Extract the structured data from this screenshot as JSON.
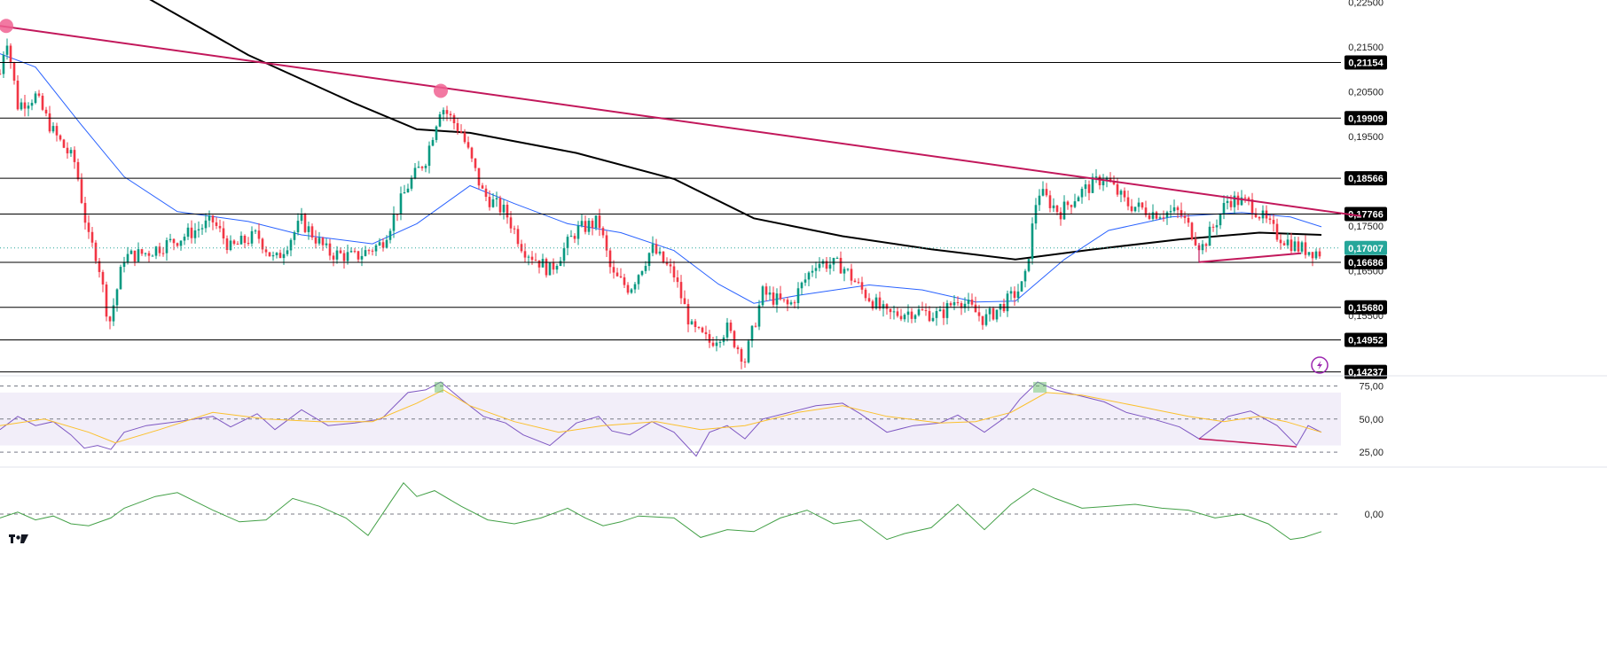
{
  "chart_data": [
    {
      "type": "candlestick",
      "panel": "price",
      "title": "",
      "y_axis": {
        "position": "right",
        "range": [
          0.1417,
          0.2255
        ],
        "tick_labels": [
          "0,22500",
          "0,21500",
          "0,20500",
          "0,19500",
          "0,17500",
          "0,16500",
          "0,15500"
        ],
        "tick_values": [
          0.225,
          0.215,
          0.205,
          0.195,
          0.175,
          0.165,
          0.155
        ]
      },
      "current_price": {
        "label": "0,17007",
        "value": 0.17007,
        "color": "#26a69a"
      },
      "horizontal_levels": [
        {
          "label": "0,21154",
          "value": 0.21154
        },
        {
          "label": "0,19909",
          "value": 0.19909
        },
        {
          "label": "0,18566",
          "value": 0.18566
        },
        {
          "label": "0,17766",
          "value": 0.17766
        },
        {
          "label": "0,16686",
          "value": 0.16686
        },
        {
          "label": "0,15680",
          "value": 0.1568
        },
        {
          "label": "0,14952",
          "value": 0.14952
        },
        {
          "label": "0,14237",
          "value": 0.14237
        }
      ],
      "trendlines": [
        {
          "name": "descending-resistance",
          "color": "#c2185b",
          "points": [
            [
              0,
              0.2197
            ],
            [
              1535,
              0.1772
            ]
          ]
        },
        {
          "name": "divergence-support",
          "color": "#c2185b",
          "points": [
            [
              1352,
              0.1669
            ],
            [
              1467,
              0.1689
            ]
          ]
        }
      ],
      "markers": [
        {
          "bar": 7,
          "value": 0.2197,
          "color": "#f06292"
        },
        {
          "bar": 497,
          "value": 0.2052,
          "color": "#f06292"
        }
      ],
      "moving_averages": [
        {
          "color": "#000000",
          "points": [
            [
              165,
              0.2261
            ],
            [
              280,
              0.2132
            ],
            [
              400,
              0.2024
            ],
            [
              470,
              0.1966
            ],
            [
              530,
              0.1958
            ],
            [
              650,
              0.1913
            ],
            [
              760,
              0.1855
            ],
            [
              850,
              0.1767
            ],
            [
              950,
              0.1727
            ],
            [
              1050,
              0.1698
            ],
            [
              1145,
              0.1675
            ],
            [
              1230,
              0.1697
            ],
            [
              1330,
              0.172
            ],
            [
              1420,
              0.1735
            ],
            [
              1490,
              0.173
            ]
          ]
        },
        {
          "color": "#2962ff",
          "points": [
            [
              0,
              0.2135
            ],
            [
              40,
              0.2105
            ],
            [
              90,
              0.198
            ],
            [
              140,
              0.186
            ],
            [
              200,
              0.1782
            ],
            [
              280,
              0.176
            ],
            [
              340,
              0.173
            ],
            [
              420,
              0.171
            ],
            [
              470,
              0.1755
            ],
            [
              530,
              0.184
            ],
            [
              580,
              0.18
            ],
            [
              640,
              0.1755
            ],
            [
              700,
              0.1735
            ],
            [
              760,
              0.1695
            ],
            [
              810,
              0.162
            ],
            [
              850,
              0.1577
            ],
            [
              900,
              0.1595
            ],
            [
              980,
              0.1618
            ],
            [
              1040,
              0.1607
            ],
            [
              1100,
              0.158
            ],
            [
              1145,
              0.1582
            ],
            [
              1200,
              0.1675
            ],
            [
              1250,
              0.174
            ],
            [
              1320,
              0.177
            ],
            [
              1400,
              0.178
            ],
            [
              1455,
              0.177
            ],
            [
              1490,
              0.1748
            ]
          ]
        }
      ],
      "price_path": [
        [
          0,
          0.209
        ],
        [
          7,
          0.218
        ],
        [
          20,
          0.202
        ],
        [
          40,
          0.204
        ],
        [
          60,
          0.196
        ],
        [
          85,
          0.189
        ],
        [
          100,
          0.172
        ],
        [
          110,
          0.168
        ],
        [
          123,
          0.153
        ],
        [
          140,
          0.168
        ],
        [
          165,
          0.169
        ],
        [
          200,
          0.172
        ],
        [
          240,
          0.176
        ],
        [
          260,
          0.17
        ],
        [
          290,
          0.173
        ],
        [
          310,
          0.167
        ],
        [
          340,
          0.176
        ],
        [
          370,
          0.169
        ],
        [
          400,
          0.168
        ],
        [
          430,
          0.171
        ],
        [
          460,
          0.184
        ],
        [
          480,
          0.19
        ],
        [
          497,
          0.202
        ],
        [
          520,
          0.196
        ],
        [
          545,
          0.182
        ],
        [
          570,
          0.178
        ],
        [
          590,
          0.17
        ],
        [
          620,
          0.165
        ],
        [
          650,
          0.174
        ],
        [
          675,
          0.176
        ],
        [
          690,
          0.164
        ],
        [
          710,
          0.161
        ],
        [
          735,
          0.17
        ],
        [
          760,
          0.164
        ],
        [
          780,
          0.152
        ],
        [
          800,
          0.149
        ],
        [
          820,
          0.152
        ],
        [
          840,
          0.145
        ],
        [
          860,
          0.16
        ],
        [
          890,
          0.157
        ],
        [
          920,
          0.167
        ],
        [
          950,
          0.166
        ],
        [
          970,
          0.161
        ],
        [
          1000,
          0.155
        ],
        [
          1030,
          0.156
        ],
        [
          1060,
          0.155
        ],
        [
          1080,
          0.159
        ],
        [
          1110,
          0.154
        ],
        [
          1135,
          0.158
        ],
        [
          1155,
          0.162
        ],
        [
          1170,
          0.183
        ],
        [
          1195,
          0.178
        ],
        [
          1215,
          0.182
        ],
        [
          1245,
          0.186
        ],
        [
          1270,
          0.18
        ],
        [
          1300,
          0.178
        ],
        [
          1330,
          0.178
        ],
        [
          1355,
          0.17
        ],
        [
          1385,
          0.181
        ],
        [
          1410,
          0.18
        ],
        [
          1440,
          0.173
        ],
        [
          1465,
          0.17
        ],
        [
          1490,
          0.169
        ]
      ]
    },
    {
      "type": "line",
      "panel": "rsi",
      "y_axis": {
        "range": [
          15,
          82
        ],
        "tick_labels": [
          "75,00",
          "50,00",
          "25,00"
        ],
        "tick_values": [
          75,
          50,
          25
        ]
      },
      "band": [
        30,
        70
      ],
      "divergence_line": {
        "color": "#c2185b",
        "points": [
          [
            1352,
            35
          ],
          [
            1462,
            29
          ]
        ]
      },
      "series": [
        {
          "color": "#7e57c2",
          "points": [
            [
              0,
              42
            ],
            [
              20,
              52
            ],
            [
              40,
              45
            ],
            [
              60,
              48
            ],
            [
              80,
              38
            ],
            [
              95,
              28
            ],
            [
              110,
              30
            ],
            [
              125,
              27
            ],
            [
              140,
              40
            ],
            [
              165,
              45
            ],
            [
              200,
              48
            ],
            [
              240,
              52
            ],
            [
              260,
              44
            ],
            [
              290,
              54
            ],
            [
              310,
              42
            ],
            [
              340,
              57
            ],
            [
              370,
              45
            ],
            [
              400,
              47
            ],
            [
              430,
              50
            ],
            [
              460,
              70
            ],
            [
              480,
              72
            ],
            [
              497,
              78
            ],
            [
              520,
              65
            ],
            [
              545,
              52
            ],
            [
              570,
              47
            ],
            [
              590,
              38
            ],
            [
              620,
              30
            ],
            [
              650,
              47
            ],
            [
              675,
              52
            ],
            [
              690,
              41
            ],
            [
              710,
              38
            ],
            [
              735,
              48
            ],
            [
              760,
              40
            ],
            [
              785,
              22
            ],
            [
              800,
              40
            ],
            [
              820,
              45
            ],
            [
              840,
              35
            ],
            [
              860,
              50
            ],
            [
              890,
              55
            ],
            [
              920,
              60
            ],
            [
              950,
              62
            ],
            [
              970,
              54
            ],
            [
              1000,
              40
            ],
            [
              1030,
              45
            ],
            [
              1060,
              47
            ],
            [
              1080,
              53
            ],
            [
              1110,
              40
            ],
            [
              1135,
              52
            ],
            [
              1150,
              65
            ],
            [
              1170,
              78
            ],
            [
              1190,
              72
            ],
            [
              1215,
              68
            ],
            [
              1245,
              63
            ],
            [
              1270,
              55
            ],
            [
              1300,
              50
            ],
            [
              1330,
              44
            ],
            [
              1352,
              35
            ],
            [
              1385,
              52
            ],
            [
              1410,
              56
            ],
            [
              1440,
              45
            ],
            [
              1462,
              30
            ],
            [
              1475,
              45
            ],
            [
              1490,
              40
            ]
          ]
        },
        {
          "color": "#fbc02d",
          "points": [
            [
              0,
              45
            ],
            [
              50,
              50
            ],
            [
              100,
              40
            ],
            [
              130,
              32
            ],
            [
              180,
              42
            ],
            [
              240,
              55
            ],
            [
              300,
              50
            ],
            [
              360,
              48
            ],
            [
              420,
              48
            ],
            [
              470,
              62
            ],
            [
              500,
              72
            ],
            [
              530,
              60
            ],
            [
              580,
              48
            ],
            [
              630,
              40
            ],
            [
              680,
              45
            ],
            [
              740,
              48
            ],
            [
              790,
              42
            ],
            [
              840,
              45
            ],
            [
              900,
              55
            ],
            [
              950,
              60
            ],
            [
              1000,
              52
            ],
            [
              1060,
              47
            ],
            [
              1100,
              48
            ],
            [
              1140,
              55
            ],
            [
              1180,
              70
            ],
            [
              1220,
              68
            ],
            [
              1280,
              60
            ],
            [
              1340,
              52
            ],
            [
              1380,
              48
            ],
            [
              1420,
              52
            ],
            [
              1450,
              48
            ],
            [
              1490,
              40
            ]
          ]
        }
      ]
    },
    {
      "type": "line",
      "panel": "momentum",
      "y_axis": {
        "tick_labels": [
          "0,00"
        ],
        "tick_values": [
          0
        ]
      },
      "series": [
        {
          "color": "#43a047",
          "points": [
            [
              0,
              -0.2
            ],
            [
              20,
              0.1
            ],
            [
              40,
              -0.3
            ],
            [
              60,
              -0.1
            ],
            [
              80,
              -0.5
            ],
            [
              100,
              -0.6
            ],
            [
              125,
              -0.2
            ],
            [
              140,
              0.3
            ],
            [
              175,
              0.9
            ],
            [
              200,
              1.1
            ],
            [
              240,
              0.2
            ],
            [
              270,
              -0.4
            ],
            [
              300,
              -0.3
            ],
            [
              330,
              0.8
            ],
            [
              360,
              0.4
            ],
            [
              390,
              -0.2
            ],
            [
              415,
              -1.1
            ],
            [
              440,
              0.6
            ],
            [
              455,
              1.6
            ],
            [
              470,
              0.9
            ],
            [
              490,
              1.2
            ],
            [
              520,
              0.4
            ],
            [
              550,
              -0.3
            ],
            [
              580,
              -0.5
            ],
            [
              610,
              -0.2
            ],
            [
              640,
              0.3
            ],
            [
              660,
              -0.2
            ],
            [
              680,
              -0.6
            ],
            [
              700,
              -0.4
            ],
            [
              720,
              -0.1
            ],
            [
              760,
              -0.2
            ],
            [
              790,
              -1.2
            ],
            [
              820,
              -0.8
            ],
            [
              850,
              -0.9
            ],
            [
              880,
              -0.2
            ],
            [
              910,
              0.2
            ],
            [
              940,
              -0.5
            ],
            [
              970,
              -0.3
            ],
            [
              1000,
              -1.3
            ],
            [
              1020,
              -1.0
            ],
            [
              1050,
              -0.7
            ],
            [
              1080,
              0.5
            ],
            [
              1110,
              -0.8
            ],
            [
              1140,
              0.5
            ],
            [
              1165,
              1.3
            ],
            [
              1190,
              0.8
            ],
            [
              1220,
              0.3
            ],
            [
              1250,
              0.4
            ],
            [
              1280,
              0.5
            ],
            [
              1310,
              0.3
            ],
            [
              1340,
              0.2
            ],
            [
              1370,
              -0.2
            ],
            [
              1400,
              0.0
            ],
            [
              1430,
              -0.5
            ],
            [
              1455,
              -1.3
            ],
            [
              1470,
              -1.2
            ],
            [
              1490,
              -0.9
            ]
          ]
        }
      ]
    }
  ]
}
